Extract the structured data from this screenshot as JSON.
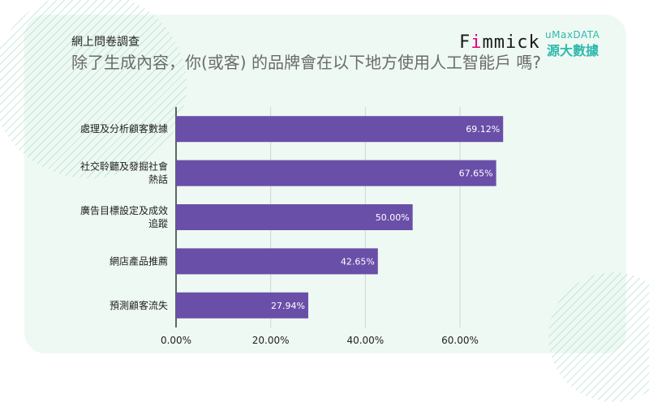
{
  "header": {
    "survey_label": "網上問卷調查",
    "question": "除了生成內容，你(或客) 的品牌會在以下地方使用人工智能戶 嗎?"
  },
  "logos": {
    "fimmick": "Fimmick",
    "umax": "uMaxDATA",
    "umax_cn": "源大數據"
  },
  "chart_data": {
    "type": "bar",
    "orientation": "horizontal",
    "categories": [
      [
        "處理及分析顧客數據"
      ],
      [
        "社交聆聽及發掘社會",
        "熱話"
      ],
      [
        "廣告目標設定及成效",
        "追蹤"
      ],
      [
        "網店產品推薦"
      ],
      [
        "預測顧客流失"
      ]
    ],
    "values": [
      69.12,
      67.65,
      50.0,
      42.65,
      27.94
    ],
    "value_labels": [
      "69.12%",
      "67.65%",
      "50.00%",
      "42.65%",
      "27.94%"
    ],
    "xticks": [
      0,
      20,
      40,
      60
    ],
    "xtick_labels": [
      "0.00%",
      "20.00%",
      "40.00%",
      "60.00%"
    ],
    "xlim": [
      0,
      72
    ],
    "grid": true,
    "bar_color": "#6a4fa8"
  }
}
